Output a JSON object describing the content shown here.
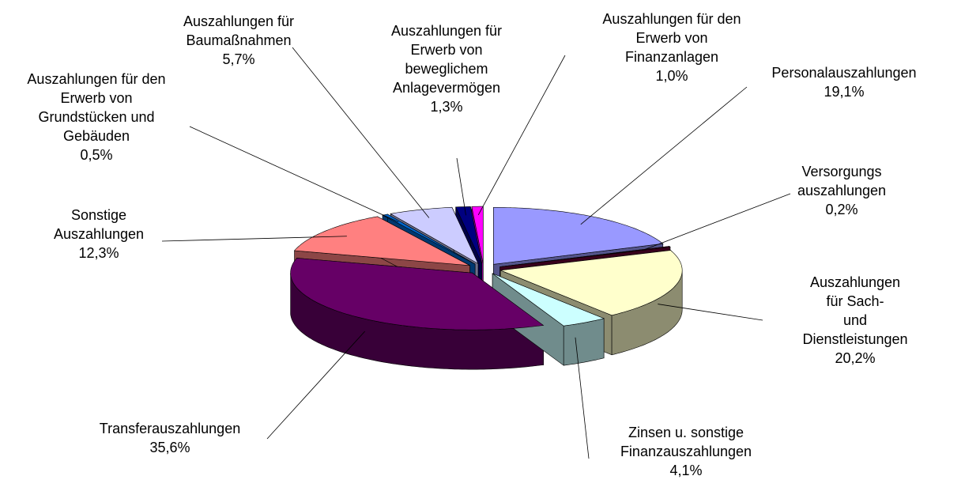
{
  "chart_data": {
    "type": "pie3d",
    "categories": [
      "Personalauszahlungen",
      "Versorgungs\nauszahlungen",
      "Auszahlungen für Sach-\nund Dienstleistungen",
      "Zinsen u. sonstige\nFinanzauszahlungen",
      "Transferauszahlungen",
      "Sonstige\nAuszahlungen",
      "Auszahlungen für den\nErwerb von\nGrundstücken und\nGebäuden",
      "Auszahlungen für\nBaumaßnahmen",
      "Auszahlungen für\nErwerb von\nbeweglichem\nAnlagevermögen",
      "Auszahlungen für den\nErwerb von\nFinanzanlagen"
    ],
    "values": [
      19.1,
      0.2,
      20.2,
      4.1,
      35.6,
      12.3,
      0.5,
      5.7,
      1.3,
      1.0
    ],
    "value_labels": [
      "19,1%",
      "0,2%",
      "20,2%",
      "4,1%",
      "35,6%",
      "12,3%",
      "0,5%",
      "5,7%",
      "1,3%",
      "1,0%"
    ],
    "colors": [
      "#9999ff",
      "#660033",
      "#ffffcc",
      "#ccffff",
      "#660066",
      "#ff8080",
      "#0066cc",
      "#ccccff",
      "#000080",
      "#ff00ff"
    ]
  }
}
